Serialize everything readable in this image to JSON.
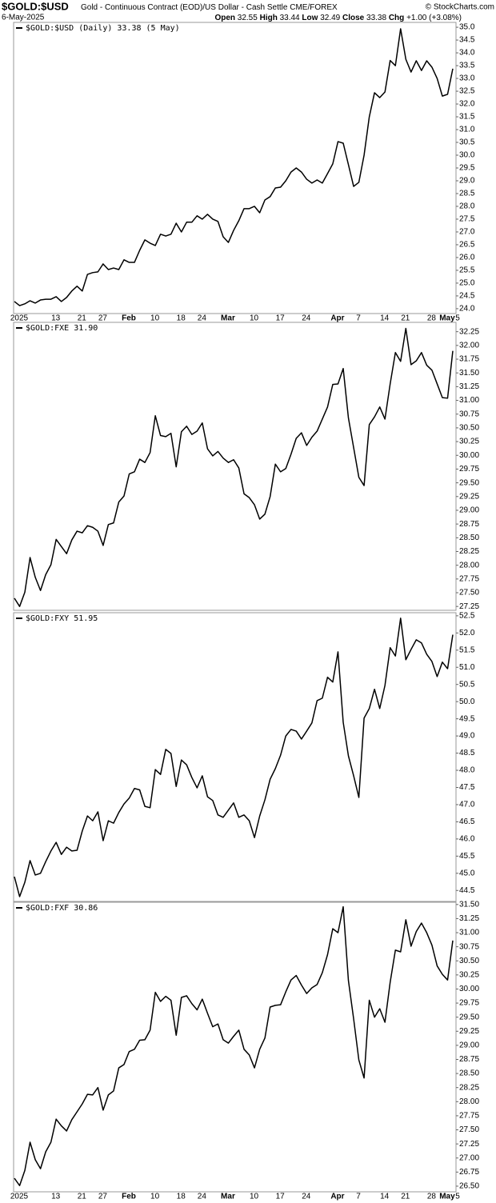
{
  "header": {
    "symbol": "$GOLD:$USD",
    "description": "Gold - Continuous Contract (EOD)/US Dollar - Cash Settle",
    "exchange": "CME/FOREX",
    "copyright": "© StockCharts.com",
    "date": "6-May-2025",
    "quote": [
      {
        "label": "Open",
        "value": "32.55"
      },
      {
        "label": "High",
        "value": "33.44"
      },
      {
        "label": "Low",
        "value": "32.49"
      },
      {
        "label": "Close",
        "value": "33.38"
      },
      {
        "label": "Chg",
        "value": "+1.00 (+3.08%)"
      }
    ]
  },
  "chart_data": [
    {
      "type": "line",
      "categories": [
        "2025",
        null,
        null,
        null,
        null,
        null,
        null,
        "13",
        null,
        null,
        null,
        null,
        "21",
        null,
        null,
        null,
        "27",
        null,
        null,
        null,
        null,
        "Feb",
        null,
        null,
        null,
        null,
        "10",
        null,
        null,
        null,
        null,
        "18",
        null,
        null,
        null,
        "24",
        null,
        null,
        null,
        null,
        "Mar",
        null,
        null,
        null,
        null,
        "10",
        null,
        null,
        null,
        null,
        "17",
        null,
        null,
        null,
        null,
        "24",
        null,
        null,
        null,
        null,
        null,
        "Apr",
        null,
        null,
        null,
        "7",
        null,
        null,
        null,
        null,
        "14",
        null,
        null,
        null,
        "21",
        null,
        null,
        null,
        null,
        "28",
        null,
        null,
        "May",
        null,
        "5"
      ],
      "series": [
        {
          "name": "$GOLD:$USD (Daily) 33.38 (5 May)",
          "color": "#000000",
          "values": [
            24.28,
            24.12,
            24.19,
            24.31,
            24.22,
            24.34,
            24.37,
            24.37,
            24.47,
            24.28,
            24.44,
            24.69,
            24.88,
            24.69,
            25.34,
            25.41,
            25.44,
            25.75,
            25.53,
            25.59,
            25.53,
            25.91,
            25.81,
            25.81,
            26.28,
            26.69,
            26.56,
            26.47,
            26.91,
            26.84,
            26.91,
            27.34,
            27.0,
            27.38,
            27.38,
            27.63,
            27.5,
            27.69,
            27.5,
            27.41,
            26.81,
            26.59,
            27.06,
            27.44,
            27.91,
            27.91,
            28.0,
            27.75,
            28.25,
            28.38,
            28.72,
            28.75,
            29.0,
            29.34,
            29.5,
            29.34,
            29.06,
            28.91,
            29.03,
            28.91,
            29.28,
            29.66,
            30.53,
            30.47,
            29.63,
            28.78,
            28.94,
            30.0,
            31.5,
            32.44,
            32.25,
            32.47,
            33.7,
            33.5,
            34.94,
            33.75,
            33.25,
            33.69,
            33.31,
            33.69,
            33.44,
            33.0,
            32.31,
            32.38,
            33.38
          ]
        }
      ],
      "ylim": [
        23.81,
        35.19
      ],
      "yticks": [
        {
          "value": 24,
          "label": "24.0"
        },
        24.5,
        {
          "value": 25,
          "label": "25.0"
        },
        25.5,
        {
          "value": 26,
          "label": "26.0"
        },
        26.5,
        {
          "value": 27,
          "label": "27.0"
        },
        27.5,
        {
          "value": 28,
          "label": "28.0"
        },
        28.5,
        {
          "value": 29,
          "label": "29.0"
        },
        29.5,
        {
          "value": 30,
          "label": "30.0"
        },
        30.5,
        {
          "value": 31,
          "label": "31.0"
        },
        31.5,
        {
          "value": 32,
          "label": "32.0"
        },
        32.5,
        {
          "value": 33,
          "label": "33.0"
        },
        33.5,
        {
          "value": 34,
          "label": "34.0"
        },
        34.5,
        {
          "value": 35,
          "label": "35.0"
        }
      ]
    },
    {
      "type": "line",
      "series": [
        {
          "name": "$GOLD:FXE 31.90",
          "color": "#000000",
          "values": [
            27.4,
            27.25,
            27.51,
            28.14,
            27.78,
            27.54,
            27.83,
            28.01,
            28.47,
            28.34,
            28.21,
            28.46,
            28.62,
            28.59,
            28.72,
            28.69,
            28.62,
            28.36,
            28.74,
            28.77,
            29.15,
            29.26,
            29.66,
            29.7,
            29.93,
            29.87,
            30.05,
            30.72,
            30.36,
            30.34,
            30.4,
            29.79,
            30.43,
            30.53,
            30.38,
            30.44,
            30.59,
            30.12,
            29.99,
            30.07,
            29.95,
            29.87,
            29.92,
            29.77,
            29.3,
            29.23,
            29.1,
            28.84,
            28.93,
            29.25,
            29.84,
            29.7,
            29.76,
            30.02,
            30.31,
            30.41,
            30.18,
            30.33,
            30.44,
            30.66,
            30.88,
            31.29,
            31.3,
            31.58,
            30.68,
            30.14,
            29.6,
            29.45,
            30.56,
            30.7,
            30.88,
            30.66,
            31.3,
            31.87,
            31.71,
            32.31,
            31.65,
            31.72,
            31.87,
            31.64,
            31.55,
            31.3,
            31.05,
            31.04,
            31.9
          ]
        }
      ],
      "ylim": [
        27.18,
        32.42
      ],
      "yticks": [
        27.25,
        {
          "value": 27.5,
          "label": "27.50"
        },
        27.75,
        {
          "value": 28,
          "label": "28.00"
        },
        28.25,
        {
          "value": 28.5,
          "label": "28.50"
        },
        28.75,
        {
          "value": 29,
          "label": "29.00"
        },
        29.25,
        {
          "value": 29.5,
          "label": "29.50"
        },
        29.75,
        {
          "value": 30,
          "label": "30.00"
        },
        30.25,
        {
          "value": 30.5,
          "label": "30.50"
        },
        30.75,
        {
          "value": 31,
          "label": "31.00"
        },
        31.25,
        {
          "value": 31.5,
          "label": "31.50"
        },
        31.75,
        {
          "value": 32,
          "label": "32.00"
        },
        32.25
      ]
    },
    {
      "type": "line",
      "series": [
        {
          "name": "$GOLD:FXY 51.95",
          "color": "#000000",
          "values": [
            44.9,
            44.32,
            44.74,
            45.37,
            44.95,
            45.0,
            45.34,
            45.65,
            45.9,
            45.55,
            45.76,
            45.65,
            45.67,
            46.23,
            46.67,
            46.53,
            46.79,
            45.95,
            46.53,
            46.46,
            46.77,
            47.02,
            47.19,
            47.47,
            47.43,
            46.95,
            46.91,
            48.02,
            47.88,
            48.61,
            48.49,
            47.53,
            48.3,
            48.16,
            47.79,
            47.49,
            47.84,
            47.23,
            47.12,
            46.7,
            46.63,
            46.84,
            47.05,
            46.63,
            46.7,
            46.53,
            46.04,
            46.67,
            47.14,
            47.74,
            48.05,
            48.44,
            49.0,
            49.19,
            49.14,
            48.91,
            49.14,
            49.38,
            50.03,
            50.1,
            50.71,
            50.57,
            51.45,
            49.4,
            48.42,
            47.84,
            47.21,
            49.52,
            49.8,
            50.36,
            49.8,
            50.47,
            51.57,
            51.33,
            52.43,
            51.22,
            51.52,
            51.8,
            51.71,
            51.38,
            51.17,
            50.73,
            51.15,
            50.96,
            51.95
          ]
        }
      ],
      "ylim": [
        44.18,
        52.59
      ],
      "yticks": [
        44.5,
        {
          "value": 45,
          "label": "45.0"
        },
        45.5,
        {
          "value": 46,
          "label": "46.0"
        },
        46.5,
        {
          "value": 47,
          "label": "47.0"
        },
        47.5,
        {
          "value": 48,
          "label": "48.0"
        },
        48.5,
        {
          "value": 49,
          "label": "49.0"
        },
        49.5,
        {
          "value": 50,
          "label": "50.0"
        },
        50.5,
        {
          "value": 51,
          "label": "51.0"
        },
        51.5,
        {
          "value": 52,
          "label": "52.0"
        },
        52.5
      ]
    },
    {
      "type": "line",
      "categories": [
        "2025",
        null,
        null,
        null,
        null,
        null,
        null,
        "13",
        null,
        null,
        null,
        null,
        "21",
        null,
        null,
        null,
        "27",
        null,
        null,
        null,
        null,
        "Feb",
        null,
        null,
        null,
        null,
        "10",
        null,
        null,
        null,
        null,
        "18",
        null,
        null,
        null,
        "24",
        null,
        null,
        null,
        null,
        "Mar",
        null,
        null,
        null,
        null,
        "10",
        null,
        null,
        null,
        null,
        "17",
        null,
        null,
        null,
        null,
        "24",
        null,
        null,
        null,
        null,
        null,
        "Apr",
        null,
        null,
        null,
        "7",
        null,
        null,
        null,
        null,
        "14",
        null,
        null,
        null,
        "21",
        null,
        null,
        null,
        null,
        "28",
        null,
        null,
        "May",
        null,
        "5"
      ],
      "series": [
        {
          "name": "$GOLD:FXF 30.86",
          "color": "#000000",
          "values": [
            26.64,
            26.51,
            26.78,
            27.28,
            26.97,
            26.81,
            27.11,
            27.28,
            27.69,
            27.57,
            27.48,
            27.68,
            27.82,
            27.96,
            28.13,
            28.12,
            28.25,
            27.85,
            28.12,
            28.19,
            28.6,
            28.66,
            28.89,
            28.93,
            29.09,
            29.1,
            29.27,
            29.94,
            29.78,
            29.87,
            29.8,
            29.18,
            29.85,
            29.88,
            29.74,
            29.63,
            29.82,
            29.57,
            29.33,
            29.38,
            29.1,
            29.04,
            29.16,
            29.27,
            28.93,
            28.83,
            28.6,
            28.93,
            29.13,
            29.68,
            29.71,
            29.72,
            29.95,
            30.16,
            30.24,
            30.07,
            29.92,
            30.02,
            30.08,
            30.29,
            30.61,
            31.07,
            31.0,
            31.46,
            30.15,
            29.47,
            28.74,
            28.42,
            29.8,
            29.5,
            29.65,
            29.41,
            30.12,
            30.69,
            30.66,
            31.23,
            30.76,
            31.02,
            31.17,
            31.0,
            30.78,
            30.41,
            30.26,
            30.16,
            30.86
          ]
        }
      ],
      "ylim": [
        26.4,
        31.54
      ],
      "yticks": [
        {
          "value": 26.5,
          "label": "26.50"
        },
        26.75,
        {
          "value": 27,
          "label": "27.00"
        },
        27.25,
        {
          "value": 27.5,
          "label": "27.50"
        },
        27.75,
        {
          "value": 28,
          "label": "28.00"
        },
        28.25,
        {
          "value": 28.5,
          "label": "28.50"
        },
        28.75,
        {
          "value": 29,
          "label": "29.00"
        },
        29.25,
        {
          "value": 29.5,
          "label": "29.50"
        },
        29.75,
        {
          "value": 30,
          "label": "30.00"
        },
        30.25,
        {
          "value": 30.5,
          "label": "30.50"
        },
        30.75,
        {
          "value": 31,
          "label": "31.00"
        },
        31.25,
        {
          "value": 31.5,
          "label": "31.50"
        }
      ]
    }
  ]
}
